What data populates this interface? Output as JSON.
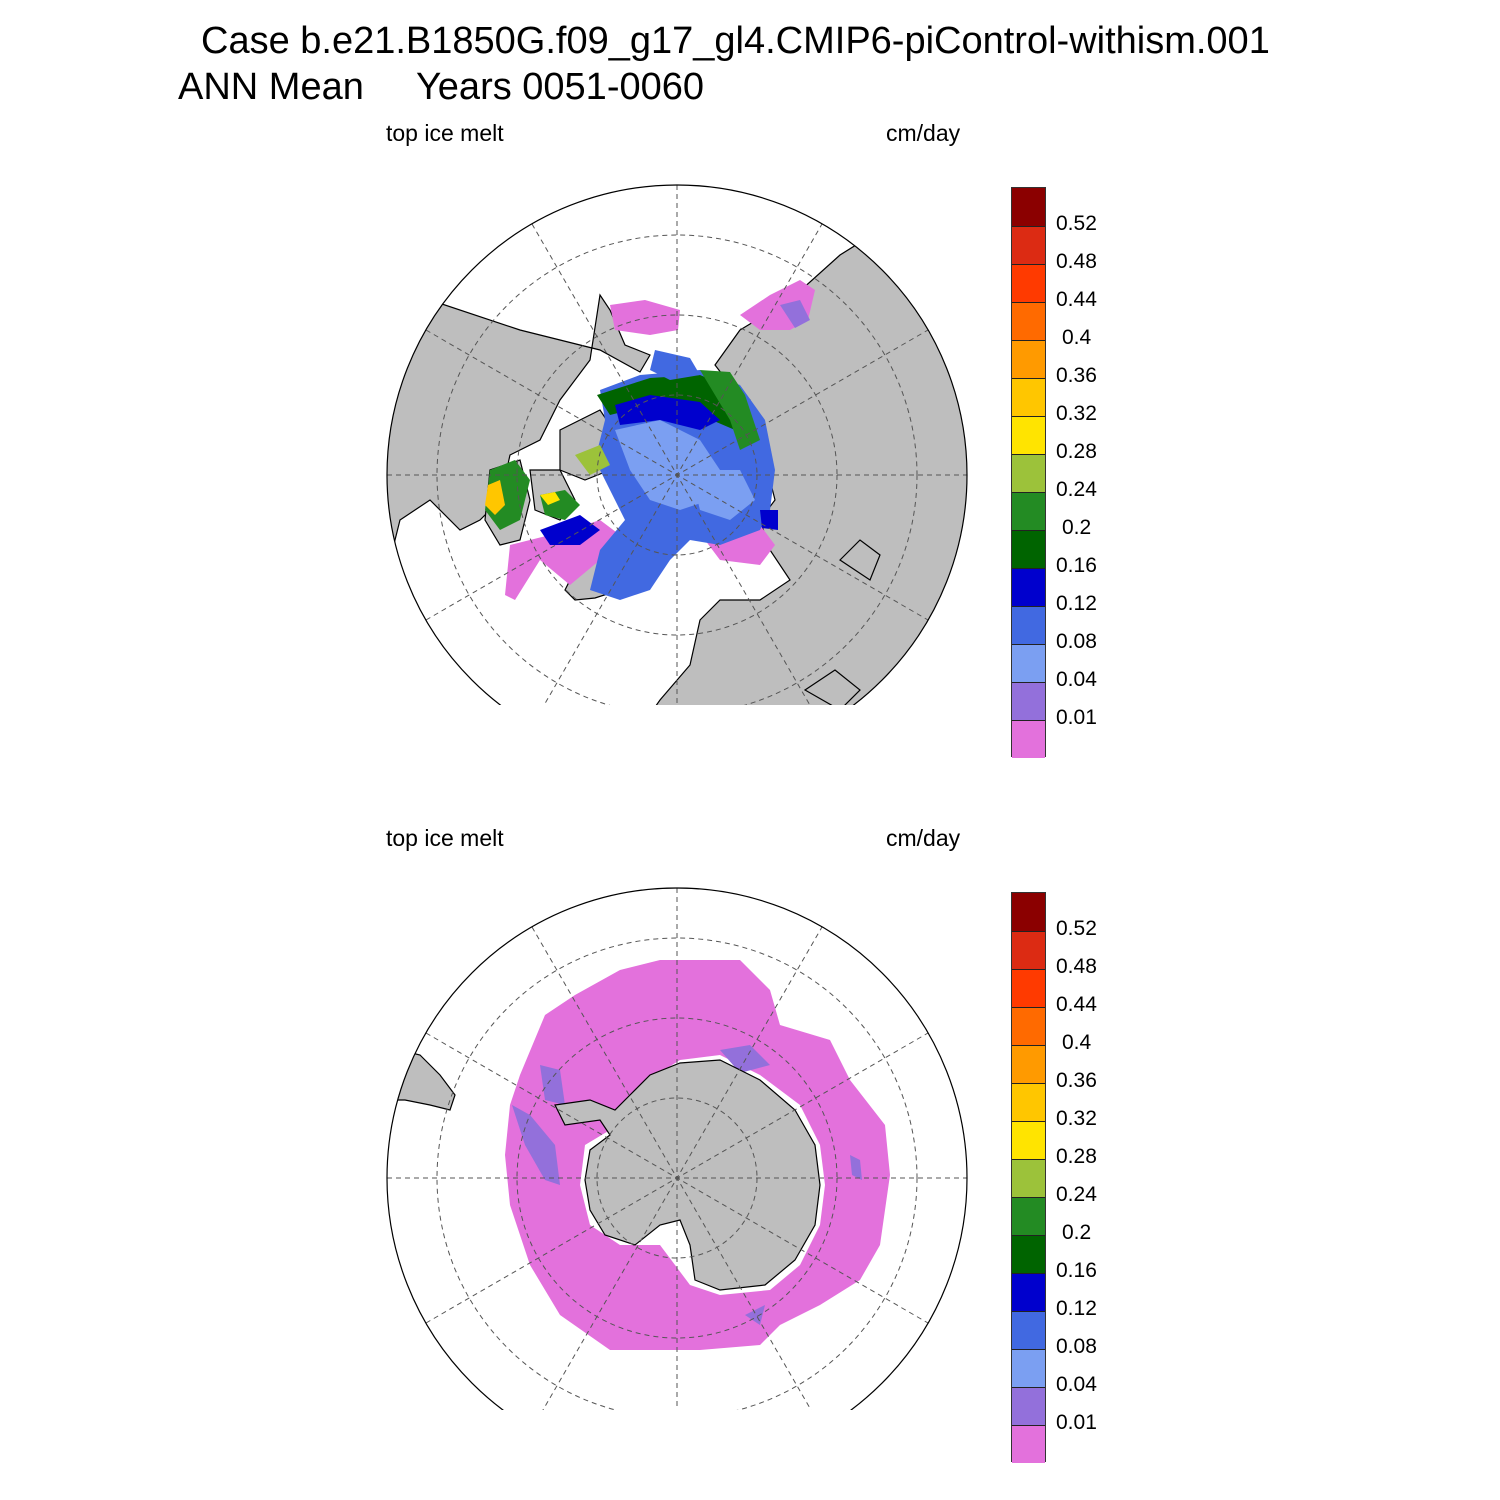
{
  "title": {
    "line1": "Case b.e21.B1850G.f09_g17_gl4.CMIP6-piControl-withism.001",
    "line2": "ANN Mean     Years 0051-0060"
  },
  "panels": [
    {
      "id": "north",
      "variable": "top ice melt",
      "units": "cm/day"
    },
    {
      "id": "south",
      "variable": "top ice melt",
      "units": "cm/day"
    }
  ],
  "colorbar": {
    "levels": [
      "0.52",
      "0.48",
      "0.44",
      "0.4",
      "0.36",
      "0.32",
      "0.28",
      "0.24",
      "0.2",
      "0.16",
      "0.12",
      "0.08",
      "0.04",
      "0.01"
    ],
    "colors": [
      "#8b0000",
      "#dc2b13",
      "#ff3a00",
      "#ff6a00",
      "#ff9a00",
      "#ffc600",
      "#ffe400",
      "#9cc23a",
      "#238b23",
      "#006400",
      "#0000cd",
      "#4169e1",
      "#7b9ff2",
      "#9370db",
      "#e371dc"
    ]
  },
  "colors": {
    "land": "#bebebe",
    "ocean": "#ffffff",
    "grid": "#555555"
  }
}
